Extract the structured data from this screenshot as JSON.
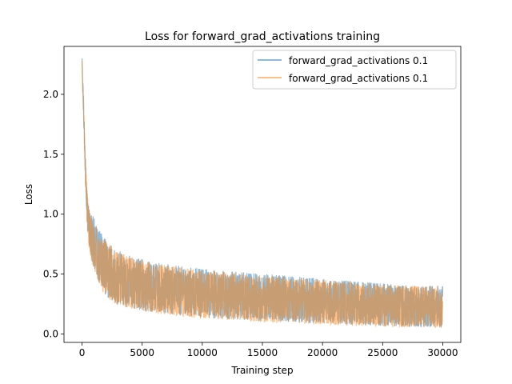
{
  "chart_data": {
    "type": "line",
    "title": "Loss for forward_grad_activations training",
    "xlabel": "Training step",
    "ylabel": "Loss",
    "xlim": [
      -1500,
      31500
    ],
    "ylim": [
      -0.07,
      2.4
    ],
    "x_ticks": [
      0,
      5000,
      10000,
      15000,
      20000,
      25000,
      30000
    ],
    "x_tick_labels": [
      "0",
      "5000",
      "10000",
      "15000",
      "20000",
      "25000",
      "30000"
    ],
    "y_ticks": [
      0.0,
      0.5,
      1.0,
      1.5,
      2.0
    ],
    "y_tick_labels": [
      "0.0",
      "0.5",
      "1.0",
      "1.5",
      "2.0"
    ],
    "grid": false,
    "legend_position": "top-right",
    "series": [
      {
        "name": "forward_grad_activations 0.1",
        "color": "#1f77b4",
        "alpha": 0.5,
        "x": [
          0,
          100,
          200,
          300,
          400,
          500,
          700,
          1000,
          1500,
          2000,
          3000,
          4000,
          5000,
          7000,
          10000,
          12500,
          15000,
          17500,
          20000,
          22500,
          25000,
          27500,
          30000
        ],
        "upper": [
          2.3,
          2.05,
          1.75,
          1.45,
          1.22,
          1.1,
          1.02,
          0.97,
          0.85,
          0.78,
          0.7,
          0.65,
          0.62,
          0.58,
          0.54,
          0.52,
          0.5,
          0.48,
          0.46,
          0.44,
          0.42,
          0.4,
          0.4
        ],
        "lower": [
          2.25,
          1.9,
          1.55,
          1.2,
          0.95,
          0.8,
          0.65,
          0.55,
          0.4,
          0.32,
          0.25,
          0.22,
          0.2,
          0.17,
          0.14,
          0.12,
          0.11,
          0.1,
          0.09,
          0.08,
          0.07,
          0.06,
          0.06
        ]
      },
      {
        "name": "forward_grad_activations 0.1",
        "color": "#ff7f0e",
        "alpha": 0.5,
        "x": [
          0,
          100,
          200,
          300,
          400,
          500,
          700,
          1000,
          1500,
          2000,
          3000,
          4000,
          5000,
          7000,
          10000,
          12500,
          15000,
          17500,
          20000,
          22500,
          25000,
          27500,
          30000
        ],
        "upper": [
          2.28,
          2.02,
          1.72,
          1.42,
          1.25,
          1.12,
          1.0,
          0.95,
          0.83,
          0.77,
          0.69,
          0.64,
          0.61,
          0.57,
          0.53,
          0.51,
          0.49,
          0.47,
          0.45,
          0.43,
          0.41,
          0.4,
          0.4
        ],
        "lower": [
          2.22,
          1.88,
          1.52,
          1.18,
          0.93,
          0.78,
          0.63,
          0.53,
          0.39,
          0.31,
          0.24,
          0.21,
          0.19,
          0.16,
          0.13,
          0.12,
          0.1,
          0.09,
          0.08,
          0.07,
          0.06,
          0.06,
          0.05
        ]
      }
    ]
  }
}
